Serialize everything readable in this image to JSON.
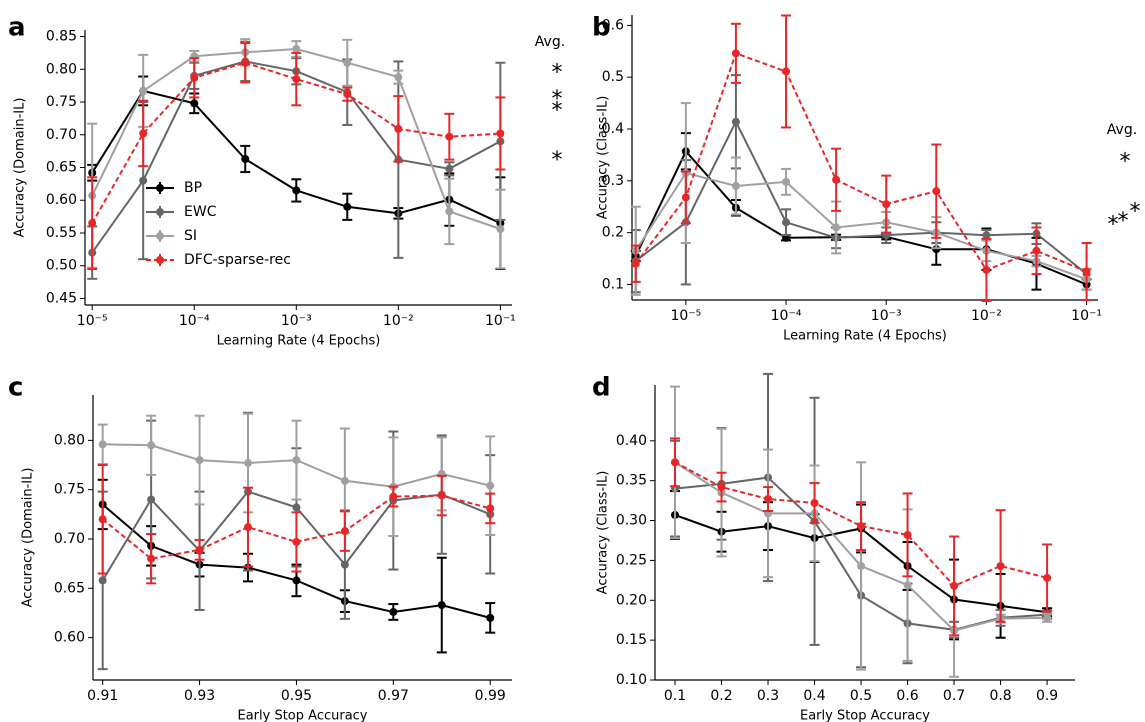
{
  "chart_data": [
    {
      "type": "line",
      "panel": "a",
      "xscale": "log",
      "x": [
        1e-05,
        3.16e-05,
        0.0001,
        0.000316,
        0.001,
        0.00316,
        0.01,
        0.0316,
        0.1
      ],
      "xlim": [
        8.5e-06,
        0.13
      ],
      "ylim": [
        0.44,
        0.86
      ],
      "xticks": [
        {
          "value": 1e-05,
          "label": "10⁻⁵"
        },
        {
          "value": 0.0001,
          "label": "10⁻⁴"
        },
        {
          "value": 0.001,
          "label": "10⁻³"
        },
        {
          "value": 0.01,
          "label": "10⁻²"
        },
        {
          "value": 0.1,
          "label": "10⁻¹"
        }
      ],
      "yticks": [
        0.45,
        {
          "value": 0.5,
          "label": "0.50"
        },
        0.55,
        {
          "value": 0.6,
          "label": "0.60"
        },
        0.65,
        {
          "value": 0.7,
          "label": "0.70"
        },
        0.75,
        {
          "value": 0.8,
          "label": "0.80"
        },
        0.85
      ],
      "xlabel": "Learning Rate (4 Epochs)",
      "ylabel": "Accuracy (Domain-IL)",
      "legend": "center left",
      "avg_title": "Avg.",
      "avg_symbol": "*",
      "series": [
        {
          "name": "BP",
          "color": "#000000",
          "linestyle": "solid",
          "avg": 0.669,
          "values": [
            0.642,
            0.767,
            0.748,
            0.663,
            0.615,
            0.59,
            0.58,
            0.601,
            0.565
          ],
          "errors": [
            0.012,
            0.022,
            0.015,
            0.02,
            0.017,
            0.02,
            0.008,
            0.04,
            0.07
          ]
        },
        {
          "name": "EWC",
          "color": "#666666",
          "linestyle": "solid",
          "avg": 0.745,
          "values": [
            0.52,
            0.63,
            0.79,
            0.812,
            0.797,
            0.765,
            0.662,
            0.648,
            0.69
          ],
          "errors": [
            0.04,
            0.12,
            0.02,
            0.03,
            0.02,
            0.05,
            0.15,
            0.01,
            0.12
          ]
        },
        {
          "name": "SI",
          "color": "#a0a0a0",
          "linestyle": "solid",
          "avg": 0.803,
          "values": [
            0.607,
            0.767,
            0.82,
            0.826,
            0.831,
            0.81,
            0.788,
            0.583,
            0.556
          ],
          "errors": [
            0.11,
            0.055,
            0.008,
            0.02,
            0.012,
            0.035,
            0.01,
            0.05,
            0.06
          ]
        },
        {
          "name": "DFC-sparse-rec",
          "color": "#e8262a",
          "linestyle": "dashed",
          "avg": 0.762,
          "values": [
            0.565,
            0.702,
            0.787,
            0.81,
            0.785,
            0.762,
            0.709,
            0.697,
            0.702
          ],
          "errors": [
            0.07,
            0.05,
            0.03,
            0.03,
            0.04,
            0.01,
            0.05,
            0.035,
            0.055
          ]
        }
      ]
    },
    {
      "type": "line",
      "panel": "b",
      "xscale": "log",
      "x": [
        3.16e-06,
        1e-05,
        3.16e-05,
        0.0001,
        0.000316,
        0.001,
        0.00316,
        0.01,
        0.0316,
        0.1
      ],
      "xlim": [
        2.9e-06,
        0.13
      ],
      "ylim": [
        0.07,
        0.62
      ],
      "xticks": [
        {
          "value": 1e-05,
          "label": "10⁻⁵"
        },
        {
          "value": 0.0001,
          "label": "10⁻⁴"
        },
        {
          "value": 0.001,
          "label": "10⁻³"
        },
        {
          "value": 0.01,
          "label": "10⁻²"
        },
        {
          "value": 0.1,
          "label": "10⁻¹"
        }
      ],
      "yticks": [
        0.1,
        0.2,
        0.3,
        0.4,
        0.5,
        0.6
      ],
      "xlabel": "Learning Rate (4 Epochs)",
      "ylabel": "Accuracy (Class-IL)",
      "avg_title": "Avg.",
      "avg_symbol": "*",
      "series": [
        {
          "name": "BP",
          "color": "#000000",
          "linestyle": "solid",
          "avg": 0.225,
          "values": [
            0.155,
            0.357,
            0.248,
            0.19,
            0.191,
            0.192,
            0.168,
            0.168,
            0.14,
            0.1
          ],
          "errors": [
            0.01,
            0.035,
            0.015,
            0.005,
            0.005,
            0.005,
            0.03,
            0.04,
            0.05,
            0.01
          ]
        },
        {
          "name": "EWC",
          "color": "#666666",
          "linestyle": "solid",
          "avg": 0.232,
          "values": [
            0.145,
            0.22,
            0.414,
            0.22,
            0.19,
            0.195,
            0.2,
            0.195,
            0.198,
            0.12
          ],
          "errors": [
            0.06,
            0.12,
            0.09,
            0.025,
            0.02,
            0.015,
            0.02,
            0.01,
            0.02,
            0.01
          ]
        },
        {
          "name": "SI",
          "color": "#a0a0a0",
          "linestyle": "solid",
          "avg": 0.25,
          "values": [
            0.165,
            0.315,
            0.29,
            0.298,
            0.21,
            0.22,
            0.2,
            0.165,
            0.145,
            0.11
          ],
          "errors": [
            0.085,
            0.135,
            0.055,
            0.025,
            0.05,
            0.02,
            0.03,
            0.02,
            0.01,
            0.02
          ]
        },
        {
          "name": "DFC-sparse-rec",
          "color": "#e8262a",
          "linestyle": "dashed",
          "avg": 0.347,
          "values": [
            0.14,
            0.268,
            0.546,
            0.511,
            0.302,
            0.255,
            0.28,
            0.128,
            0.165,
            0.125
          ],
          "errors": [
            0.035,
            0.05,
            0.057,
            0.108,
            0.06,
            0.055,
            0.09,
            0.06,
            0.045,
            0.055
          ]
        }
      ]
    },
    {
      "type": "line",
      "panel": "c",
      "xscale": "linear",
      "x": [
        0.91,
        0.92,
        0.93,
        0.94,
        0.95,
        0.96,
        0.97,
        0.98,
        0.99
      ],
      "xlim": [
        0.908,
        0.9945
      ],
      "ylim": [
        0.557,
        0.846
      ],
      "xticks": [
        0.91,
        0.93,
        0.95,
        0.97,
        0.99
      ],
      "yticks": [
        {
          "value": 0.6,
          "label": "0.60"
        },
        0.65,
        {
          "value": 0.7,
          "label": "0.70"
        },
        0.75,
        {
          "value": 0.8,
          "label": "0.80"
        }
      ],
      "xlabel": "Early Stop Accuracy",
      "ylabel": "Accuracy (Domain-IL)",
      "series": [
        {
          "name": "BP",
          "color": "#000000",
          "linestyle": "solid",
          "values": [
            0.735,
            0.693,
            0.674,
            0.671,
            0.658,
            0.637,
            0.626,
            0.633,
            0.62
          ],
          "errors": [
            0.025,
            0.02,
            0.012,
            0.014,
            0.016,
            0.011,
            0.008,
            0.048,
            0.015
          ]
        },
        {
          "name": "EWC",
          "color": "#666666",
          "linestyle": "solid",
          "values": [
            0.658,
            0.74,
            0.688,
            0.748,
            0.732,
            0.674,
            0.739,
            0.745,
            0.725
          ],
          "errors": [
            0.09,
            0.08,
            0.06,
            0.08,
            0.06,
            0.055,
            0.07,
            0.06,
            0.06
          ]
        },
        {
          "name": "SI",
          "color": "#a0a0a0",
          "linestyle": "solid",
          "values": [
            0.796,
            0.795,
            0.78,
            0.777,
            0.78,
            0.759,
            0.753,
            0.766,
            0.754
          ],
          "errors": [
            0.02,
            0.03,
            0.045,
            0.05,
            0.04,
            0.053,
            0.05,
            0.037,
            0.05
          ]
        },
        {
          "name": "DFC-sparse-rec",
          "color": "#e8262a",
          "linestyle": "dashed",
          "values": [
            0.72,
            0.68,
            0.689,
            0.712,
            0.697,
            0.708,
            0.743,
            0.744,
            0.731
          ],
          "errors": [
            0.055,
            0.025,
            0.01,
            0.04,
            0.03,
            0.02,
            0.01,
            0.02,
            0.015
          ]
        }
      ]
    },
    {
      "type": "line",
      "panel": "d",
      "xscale": "linear",
      "x": [
        0.1,
        0.2,
        0.3,
        0.4,
        0.5,
        0.6,
        0.7,
        0.8,
        0.9
      ],
      "xlim": [
        0.057,
        0.96
      ],
      "ylim": [
        0.1,
        0.47
      ],
      "xticks": [
        0.1,
        0.2,
        0.3,
        0.4,
        0.5,
        0.6,
        0.7,
        0.8,
        0.9
      ],
      "yticks": [
        {
          "value": 0.1,
          "label": "0.10"
        },
        0.15,
        {
          "value": 0.2,
          "label": "0.20"
        },
        0.25,
        {
          "value": 0.3,
          "label": "0.30"
        },
        0.35,
        {
          "value": 0.4,
          "label": "0.40"
        }
      ],
      "xlabel": "Early Stop Accuracy",
      "ylabel": "Accuracy (Class-IL)",
      "series": [
        {
          "name": "BP",
          "color": "#000000",
          "linestyle": "solid",
          "values": [
            0.307,
            0.286,
            0.293,
            0.278,
            0.29,
            0.243,
            0.201,
            0.193,
            0.185
          ],
          "errors": [
            0.03,
            0.025,
            0.03,
            0.03,
            0.03,
            0.03,
            0.05,
            0.04,
            0.005
          ]
        },
        {
          "name": "EWC",
          "color": "#666666",
          "linestyle": "solid",
          "values": [
            0.34,
            0.346,
            0.354,
            0.299,
            0.206,
            0.171,
            0.163,
            0.178,
            0.182
          ],
          "errors": [
            0.06,
            0.07,
            0.13,
            0.155,
            0.09,
            0.05,
            0.01,
            0.01,
            0.005
          ]
        },
        {
          "name": "SI",
          "color": "#a0a0a0",
          "linestyle": "solid",
          "values": [
            0.373,
            0.335,
            0.309,
            0.309,
            0.243,
            0.219,
            0.162,
            0.177,
            0.178
          ],
          "errors": [
            0.095,
            0.08,
            0.08,
            0.06,
            0.13,
            0.095,
            0.058,
            0.005,
            0.005
          ]
        },
        {
          "name": "DFC-sparse-rec",
          "color": "#e8262a",
          "linestyle": "dashed",
          "values": [
            0.373,
            0.342,
            0.327,
            0.322,
            0.293,
            0.282,
            0.218,
            0.243,
            0.228
          ],
          "errors": [
            0.03,
            0.018,
            0.015,
            0.025,
            0.03,
            0.052,
            0.062,
            0.07,
            0.042
          ]
        }
      ]
    }
  ]
}
